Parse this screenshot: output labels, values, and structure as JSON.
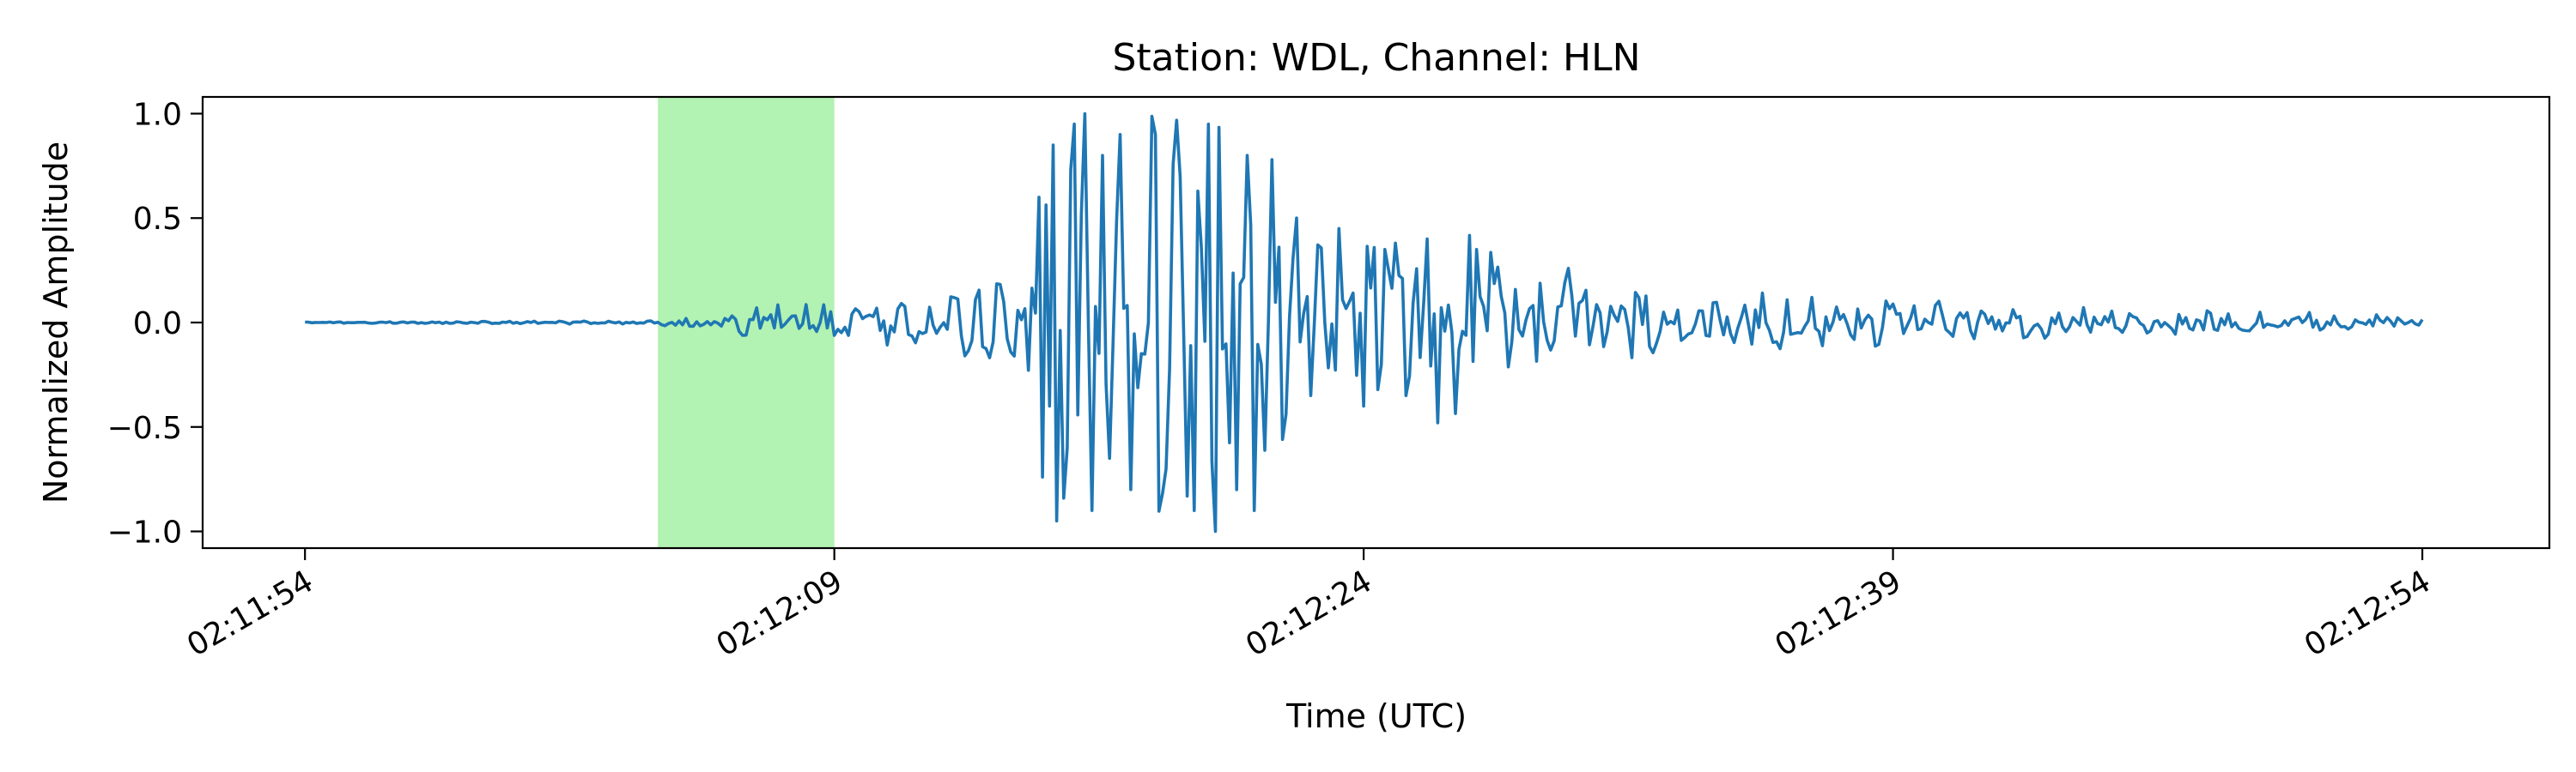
{
  "chart_data": {
    "type": "line",
    "title": "Station: WDL, Channel: HLN",
    "xlabel": "Time (UTC)",
    "ylabel": "Normalized Amplitude",
    "x_unit": "seconds",
    "x_ticks": [
      {
        "t": 0,
        "label": "02:11:54"
      },
      {
        "t": 15,
        "label": "02:12:09"
      },
      {
        "t": 30,
        "label": "02:12:24"
      },
      {
        "t": 45,
        "label": "02:12:39"
      },
      {
        "t": 60,
        "label": "02:12:54"
      }
    ],
    "y_ticks": [
      {
        "v": 1.0,
        "label": "1.0"
      },
      {
        "v": 0.5,
        "label": "0.5"
      },
      {
        "v": 0.0,
        "label": "0.0"
      },
      {
        "v": -0.5,
        "label": "−0.5"
      },
      {
        "v": -1.0,
        "label": "−1.0"
      }
    ],
    "xlim": [
      -2.9,
      63.6
    ],
    "ylim": [
      -1.08,
      1.08
    ],
    "grid": false,
    "highlight_window": {
      "start": 10,
      "end": 15,
      "color": "#b2f2b2"
    },
    "series": [
      {
        "color": "#1f77b4",
        "start_time": 0,
        "sample_interval": 0.1,
        "envelope": [
          [
            0,
            0.004
          ],
          [
            9.5,
            0.01
          ],
          [
            11,
            0.05
          ],
          [
            13,
            0.1
          ],
          [
            15,
            0.13
          ],
          [
            18,
            0.15
          ],
          [
            20,
            0.3
          ],
          [
            20.6,
            0.9
          ],
          [
            22,
            1.0
          ],
          [
            24,
            1.0
          ],
          [
            27,
            0.9
          ],
          [
            28,
            0.4
          ],
          [
            29,
            0.45
          ],
          [
            31,
            0.4
          ],
          [
            32,
            0.45
          ],
          [
            34,
            0.3
          ],
          [
            36,
            0.22
          ],
          [
            38,
            0.18
          ],
          [
            40,
            0.14
          ],
          [
            45,
            0.1
          ],
          [
            50,
            0.07
          ],
          [
            55,
            0.05
          ],
          [
            60,
            0.04
          ]
        ],
        "peaks": [
          {
            "t": 20.8,
            "v": 0.6
          },
          {
            "t": 21.05,
            "v": -0.4
          },
          {
            "t": 21.2,
            "v": 0.85
          },
          {
            "t": 21.3,
            "v": -0.95
          },
          {
            "t": 21.6,
            "v": -0.6
          },
          {
            "t": 21.8,
            "v": 0.95
          },
          {
            "t": 22.1,
            "v": 1.0
          },
          {
            "t": 22.3,
            "v": -0.9
          },
          {
            "t": 22.6,
            "v": 0.8
          },
          {
            "t": 22.8,
            "v": -0.65
          },
          {
            "t": 23.1,
            "v": 0.9
          },
          {
            "t": 23.4,
            "v": -0.8
          },
          {
            "t": 24.1,
            "v": 0.9
          },
          {
            "t": 24.4,
            "v": -0.7
          },
          {
            "t": 24.8,
            "v": 0.7
          },
          {
            "t": 25.2,
            "v": -0.9
          },
          {
            "t": 25.6,
            "v": 0.95
          },
          {
            "t": 25.8,
            "v": -1.0
          },
          {
            "t": 26.4,
            "v": -0.8
          },
          {
            "t": 26.7,
            "v": 0.8
          },
          {
            "t": 26.9,
            "v": -0.9
          },
          {
            "t": 27.35,
            "v": -0.9
          },
          {
            "t": 27.4,
            "v": 0.78
          },
          {
            "t": 28.1,
            "v": 0.5
          },
          {
            "t": 28.5,
            "v": -0.35
          },
          {
            "t": 29.3,
            "v": 0.45
          },
          {
            "t": 30.0,
            "v": -0.4
          },
          {
            "t": 30.6,
            "v": 0.35
          },
          {
            "t": 31.2,
            "v": -0.35
          },
          {
            "t": 31.8,
            "v": 0.4
          },
          {
            "t": 32.1,
            "v": -0.48
          },
          {
            "t": 33.2,
            "v": 0.35
          }
        ]
      }
    ]
  }
}
